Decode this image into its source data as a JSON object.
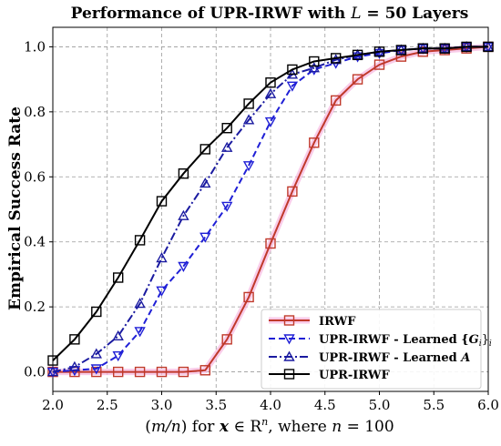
{
  "chart_data": {
    "type": "line",
    "title_prefix": "Performance of UPR-IRWF with ",
    "title_var": "L",
    "title_suffix": " = 50 Layers",
    "xlabel": {
      "part1": "(",
      "part2": "m/n",
      "part3": ") for ",
      "bold_x": "x",
      "part4": " ∈ R",
      "sup": "n",
      "part5": ", where ",
      "n_var": "n",
      "part6": " = 100"
    },
    "ylabel": "Empirical Success Rate",
    "xlim": [
      2.0,
      6.0
    ],
    "ylim": [
      -0.06,
      1.06
    ],
    "xticks": [
      2.0,
      2.5,
      3.0,
      3.5,
      4.0,
      4.5,
      5.0,
      5.5,
      6.0
    ],
    "xtick_labels": [
      "2.0",
      "2.5",
      "3.0",
      "3.5",
      "4.0",
      "4.5",
      "5.0",
      "5.5",
      "6.0"
    ],
    "yticks": [
      0.0,
      0.2,
      0.4,
      0.6,
      0.8,
      1.0
    ],
    "ytick_labels": [
      "0.0",
      "0.2",
      "0.4",
      "0.6",
      "0.8",
      "1.0"
    ],
    "grid": true,
    "legend_position": "lower-right",
    "x": [
      2.0,
      2.2,
      2.4,
      2.6,
      2.8,
      3.0,
      3.2,
      3.4,
      3.6,
      3.8,
      4.0,
      4.2,
      4.4,
      4.6,
      4.8,
      5.0,
      5.2,
      5.4,
      5.6,
      5.8,
      6.0
    ],
    "series": [
      {
        "name": "IRWF",
        "color": "#c0392b",
        "halo": "#f7b6e0",
        "linestyle": "solid",
        "marker": "square",
        "values": [
          0.0,
          0.0,
          0.0,
          0.0,
          0.0,
          0.0,
          0.0,
          0.005,
          0.1,
          0.23,
          0.395,
          0.555,
          0.705,
          0.835,
          0.9,
          0.945,
          0.97,
          0.985,
          0.99,
          0.995,
          1.0
        ]
      },
      {
        "name_prefix": "UPR-IRWF - Learned {",
        "name_var": "G",
        "name_sub": "i",
        "name_suffix": "}",
        "name_sub2": "i",
        "color": "#1f1fd6",
        "linestyle": "dashed",
        "marker": "triangle-down",
        "values": [
          0.0,
          0.005,
          0.01,
          0.05,
          0.125,
          0.25,
          0.325,
          0.415,
          0.51,
          0.635,
          0.77,
          0.88,
          0.93,
          0.95,
          0.97,
          0.98,
          0.99,
          0.995,
          0.995,
          1.0,
          1.0
        ]
      },
      {
        "name_prefix": "UPR-IRWF - Learned ",
        "name_var": "A",
        "color": "#1a1aa0",
        "linestyle": "dashdot",
        "marker": "triangle-up",
        "values": [
          0.0,
          0.015,
          0.055,
          0.11,
          0.21,
          0.35,
          0.48,
          0.58,
          0.69,
          0.775,
          0.855,
          0.915,
          0.935,
          0.96,
          0.975,
          0.985,
          0.99,
          0.995,
          0.995,
          1.0,
          1.0
        ]
      },
      {
        "name": "UPR-IRWF",
        "color": "#000000",
        "linestyle": "solid",
        "marker": "square",
        "values": [
          0.035,
          0.1,
          0.185,
          0.29,
          0.405,
          0.525,
          0.61,
          0.685,
          0.75,
          0.825,
          0.89,
          0.93,
          0.955,
          0.965,
          0.975,
          0.985,
          0.99,
          0.995,
          0.995,
          1.0,
          1.0
        ]
      }
    ]
  }
}
